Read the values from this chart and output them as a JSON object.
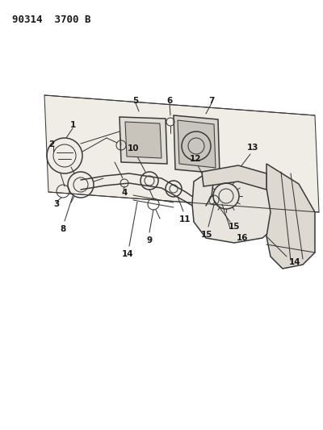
{
  "title": "90314  3700 B",
  "bg_color": "#ffffff",
  "line_color": "#3a3a3a",
  "title_fontsize": 9,
  "title_fontweight": "bold",
  "fig_width": 4.0,
  "fig_height": 5.33,
  "dpi": 100,
  "label_fontsize": 7.5
}
